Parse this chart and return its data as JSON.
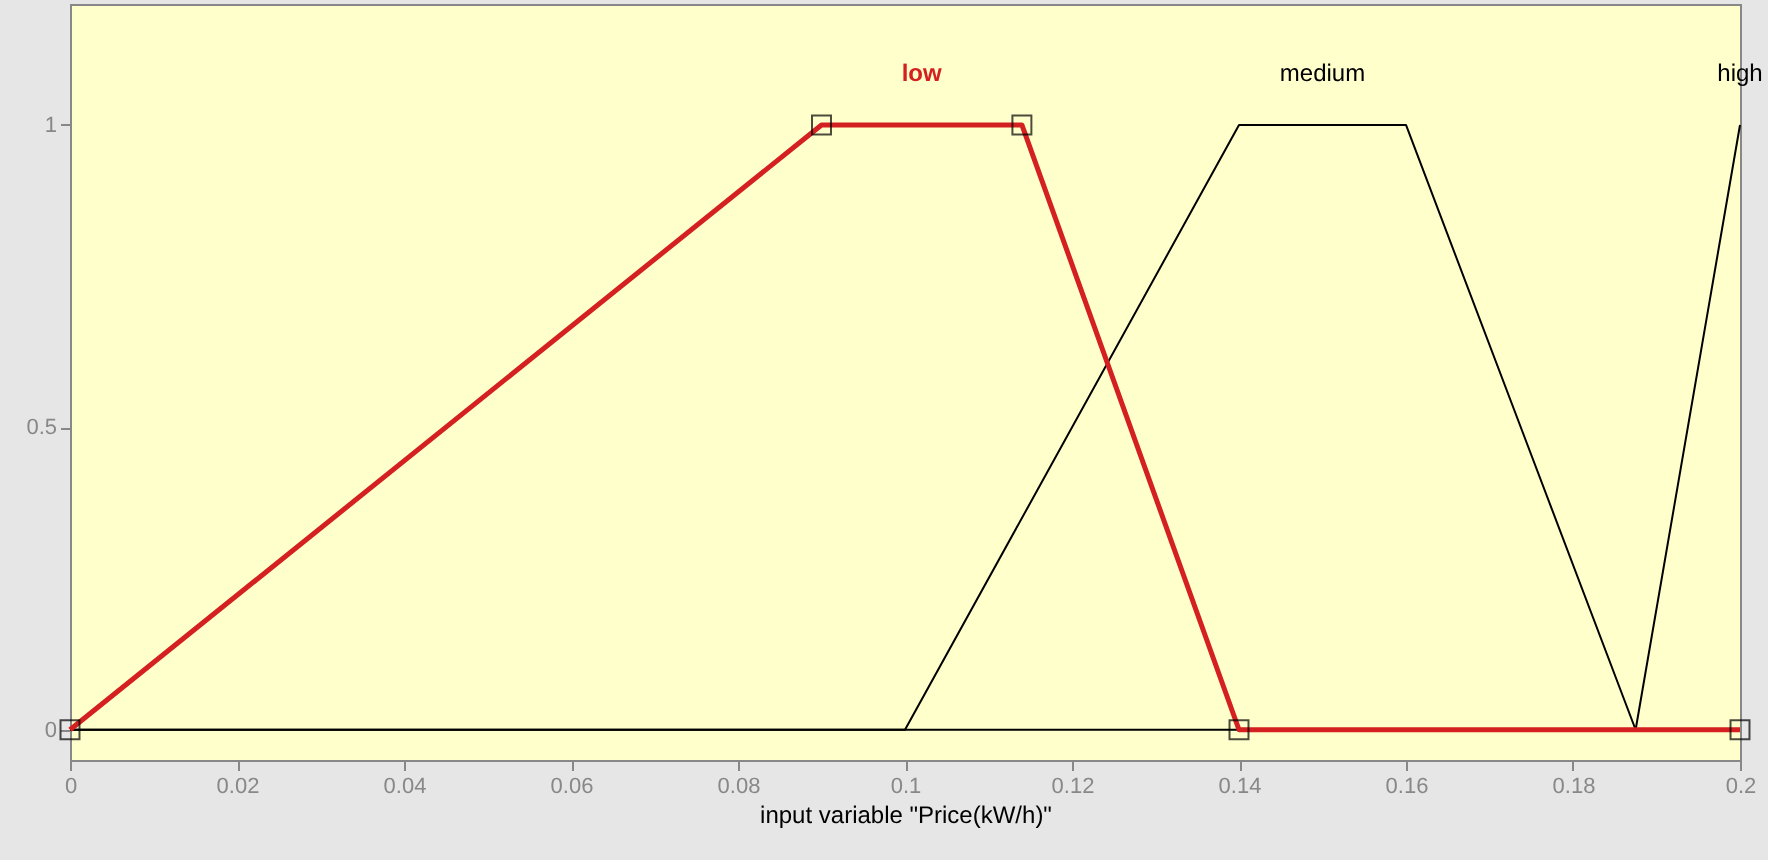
{
  "chart_data": {
    "type": "line",
    "xlabel": "input variable \"Price(kW/h)\"",
    "xlim": [
      0,
      0.2
    ],
    "xticks": [
      0,
      0.02,
      0.04,
      0.06,
      0.08,
      0.1,
      0.12,
      0.14,
      0.16,
      0.18,
      0.2
    ],
    "ylim": [
      -0.05,
      1.2
    ],
    "yticks": [
      0,
      0.5,
      1
    ],
    "grid": false,
    "series": [
      {
        "name": "medium",
        "color": "#000000",
        "x": [
          0,
          0.1,
          0.14,
          0.16,
          0.1875,
          0.2
        ],
        "values": [
          0,
          0,
          1,
          1,
          0,
          0
        ]
      },
      {
        "name": "high",
        "color": "#000000",
        "x": [
          0,
          0.1875,
          0.2
        ],
        "values": [
          0,
          0,
          1
        ]
      },
      {
        "name": "low",
        "color": "#d42020",
        "marker": "square",
        "x": [
          0,
          0.09,
          0.114,
          0.14,
          0.2
        ],
        "values": [
          0,
          1,
          1,
          0,
          0
        ]
      }
    ]
  }
}
